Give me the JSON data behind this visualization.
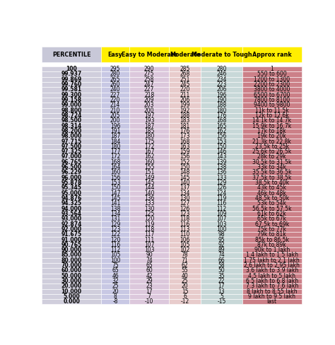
{
  "columns": [
    "PERCENTILE",
    "Easy",
    "Easy to Moderate",
    "Moderate",
    "Moderate to Tough",
    "Approx rank"
  ],
  "header_bg_percentile": "#C8C8D8",
  "header_bg_data": "#FFFF44",
  "col_bg": [
    "#D0D0E0",
    "#C8C8E8",
    "#D8C8DC",
    "#E8C8CC",
    "#C8D8DC",
    "#C87880"
  ],
  "rows": [
    [
      "100",
      "295",
      "290",
      "285",
      "280",
      "1"
    ],
    [
      "99.937",
      "280",
      "275",
      "268",
      "246",
      "550 to 600"
    ],
    [
      "99.869",
      "265",
      "258",
      "251",
      "234",
      "1200 to 1300"
    ],
    [
      "99.760",
      "260",
      "247",
      "245",
      "223",
      "2200 to 2300"
    ],
    [
      "99.581",
      "240",
      "227",
      "220",
      "206",
      "3800 to 4000"
    ],
    [
      "99.300",
      "227",
      "218",
      "211",
      "196",
      "6500 to 6700"
    ],
    [
      "99.158",
      "220",
      "209",
      "206",
      "190",
      "7800 to 8100"
    ],
    [
      "99.000",
      "214",
      "203",
      "199",
      "188",
      "9400 to 9800"
    ],
    [
      "98.800",
      "210",
      "200",
      "192",
      "180",
      "11k to 11.5k"
    ],
    [
      "98.724",
      "205",
      "197",
      "188",
      "176",
      "12k to 12.6k"
    ],
    [
      "98.500",
      "200",
      "193",
      "183",
      "168",
      "14.1k to 14.7k"
    ],
    [
      "98.314",
      "196",
      "187",
      "181",
      "165",
      "15.9k to 16.7k"
    ],
    [
      "98.200",
      "191",
      "185",
      "176",
      "162",
      "17k to 18k"
    ],
    [
      "98.000",
      "187",
      "180",
      "173",
      "156",
      "19k to 20k"
    ],
    [
      "97.715",
      "184",
      "175",
      "168",
      "153",
      "21.3k to 22.8k"
    ],
    [
      "97.500",
      "180",
      "172",
      "163",
      "150",
      "23.5k to 25k"
    ],
    [
      "97.325",
      "177",
      "167",
      "159",
      "146",
      "25.6k to 26.5k"
    ],
    [
      "97.000",
      "172",
      "162",
      "156",
      "143",
      "28k to 29k"
    ],
    [
      "96.765",
      "168",
      "160",
      "152",
      "139",
      "30.5k to 31.5k"
    ],
    [
      "96.500",
      "164",
      "155",
      "150",
      "138",
      "33k to 34k"
    ],
    [
      "96.229",
      "160",
      "151",
      "148",
      "136",
      "35.5k to 36.5k"
    ],
    [
      "96.000",
      "156",
      "149",
      "145",
      "133",
      "37.5k to 38.5k"
    ],
    [
      "95.878",
      "153",
      "145",
      "140",
      "129",
      "38.5k to 40k"
    ],
    [
      "95.345",
      "150",
      "144",
      "137",
      "126",
      "43k to 45k"
    ],
    [
      "95.000",
      "147",
      "140",
      "134",
      "124",
      "46k to 48k"
    ],
    [
      "94.876",
      "145",
      "136",
      "130",
      "119",
      "48.5k to 50k"
    ],
    [
      "94.325",
      "141",
      "133",
      "127",
      "116",
      "53k to 54k"
    ],
    [
      "94.000",
      "138",
      "130",
      "126",
      "112",
      "56.5k to 57.5k"
    ],
    [
      "93.564",
      "134",
      "125",
      "123",
      "109",
      "61k to 62k"
    ],
    [
      "93.000",
      "131",
      "120",
      "118",
      "107",
      "65k to 67k"
    ],
    [
      "92.874",
      "129",
      "119",
      "116",
      "103",
      "67.5k to 69k"
    ],
    [
      "92.000",
      "123",
      "118",
      "113",
      "100",
      "75k to 77k"
    ],
    [
      "91.675",
      "122",
      "117",
      "110",
      "98",
      "79k to 81k"
    ],
    [
      "91.000",
      "120",
      "111",
      "106",
      "95",
      "85k to 86.5k"
    ],
    [
      "90.765",
      "116",
      "107",
      "105",
      "92",
      "87k to 89k"
    ],
    [
      "90.000",
      "112",
      "103",
      "102",
      "89",
      "90k to 1 lakh"
    ],
    [
      "85.000",
      "105",
      "90",
      "78",
      "74",
      "1.4 lakh to 1.5 lakh"
    ],
    [
      "80.000",
      "100",
      "74",
      "71",
      "66",
      "1.75 lakh to 2.1 lakh"
    ],
    [
      "70.000",
      "75",
      "65",
      "62",
      "58",
      "2.6 lakh to 2.95 lakh"
    ],
    [
      "60.000",
      "65",
      "60",
      "55",
      "50",
      "3.6 lakh to 3.9 lakh"
    ],
    [
      "50.000",
      "46",
      "42",
      "40",
      "35",
      "4.5 lakh to 5 lakh"
    ],
    [
      "30.000",
      "32",
      "29",
      "25",
      "22",
      "6.5 lakh to 6.8 lakh"
    ],
    [
      "20.000",
      "25",
      "23",
      "20",
      "17",
      "7.3 lakh to 7.6 lakh"
    ],
    [
      "10.000",
      "20",
      "17",
      "15",
      "13",
      "8 lakh to 8.55 lakh"
    ],
    [
      "5.000",
      "8",
      "7",
      "6",
      "5",
      "9 lakh to 9.5 lakh"
    ],
    [
      "0.000",
      "-8",
      "-10",
      "-12",
      "-15",
      "last"
    ]
  ]
}
